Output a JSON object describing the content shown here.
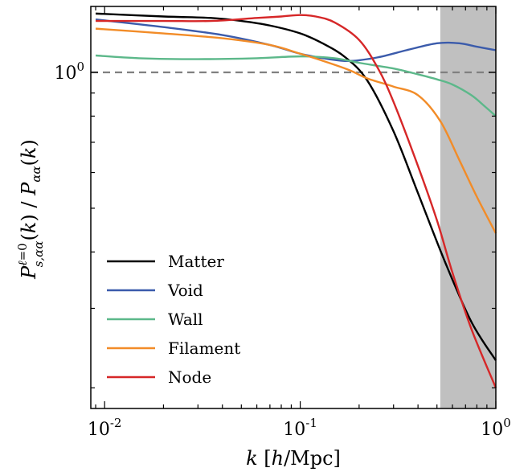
{
  "chart_data": {
    "type": "line",
    "xscale": "log",
    "yscale": "log",
    "xlim": [
      0.0085,
      1.0
    ],
    "ylim": [
      0.18,
      1.4
    ],
    "xlabel": "k [h/Mpc]",
    "ylabel": "P^{ℓ=0}_{s,αα}(k) / P_{αα}(k)",
    "x_ticks": [
      0.01,
      0.1,
      1.0
    ],
    "x_tick_labels": [
      {
        "base": "10",
        "exp": "-2"
      },
      {
        "base": "10",
        "exp": "-1"
      },
      {
        "base": "10",
        "exp": "0"
      }
    ],
    "y_ticks": [
      1.0
    ],
    "y_tick_labels": [
      {
        "base": "10",
        "exp": "0"
      }
    ],
    "reference_line": {
      "y": 1.0,
      "style": "dashed",
      "color": "#808080"
    },
    "shaded_region": {
      "x": [
        0.52,
        1.0
      ],
      "color": "#c0c0c0"
    },
    "legend_position": "lower-left",
    "series": [
      {
        "name": "Matter",
        "color": "#000000",
        "x": [
          0.009,
          0.02,
          0.035,
          0.05,
          0.07,
          0.1,
          0.13,
          0.17,
          0.22,
          0.3,
          0.4,
          0.55,
          0.75,
          1.0
        ],
        "y": [
          1.35,
          1.33,
          1.32,
          1.3,
          1.27,
          1.22,
          1.16,
          1.08,
          0.96,
          0.74,
          0.54,
          0.38,
          0.28,
          0.23
        ]
      },
      {
        "name": "Void",
        "color": "#3b5bab",
        "x": [
          0.009,
          0.02,
          0.04,
          0.07,
          0.1,
          0.14,
          0.18,
          0.25,
          0.35,
          0.5,
          0.65,
          0.8,
          1.0
        ],
        "y": [
          1.31,
          1.26,
          1.21,
          1.15,
          1.1,
          1.07,
          1.06,
          1.08,
          1.12,
          1.16,
          1.16,
          1.14,
          1.12
        ]
      },
      {
        "name": "Wall",
        "color": "#5cb88a",
        "x": [
          0.009,
          0.015,
          0.03,
          0.06,
          0.1,
          0.15,
          0.2,
          0.3,
          0.4,
          0.5,
          0.6,
          0.75,
          0.88,
          1.0
        ],
        "y": [
          1.09,
          1.075,
          1.07,
          1.075,
          1.085,
          1.075,
          1.05,
          1.02,
          0.99,
          0.965,
          0.94,
          0.89,
          0.84,
          0.8
        ]
      },
      {
        "name": "Filament",
        "color": "#f28c28",
        "x": [
          0.009,
          0.02,
          0.04,
          0.07,
          0.1,
          0.14,
          0.18,
          0.22,
          0.3,
          0.4,
          0.52,
          0.65,
          0.8,
          1.0
        ],
        "y": [
          1.25,
          1.22,
          1.19,
          1.15,
          1.1,
          1.05,
          1.01,
          0.97,
          0.93,
          0.89,
          0.78,
          0.64,
          0.53,
          0.44
        ]
      },
      {
        "name": "Node",
        "color": "#d62728",
        "x": [
          0.009,
          0.02,
          0.035,
          0.06,
          0.08,
          0.1,
          0.12,
          0.15,
          0.2,
          0.25,
          0.3,
          0.4,
          0.5,
          0.6,
          0.75,
          1.0
        ],
        "y": [
          1.3,
          1.3,
          1.3,
          1.32,
          1.33,
          1.34,
          1.33,
          1.29,
          1.18,
          1.02,
          0.86,
          0.62,
          0.47,
          0.36,
          0.27,
          0.2
        ]
      }
    ]
  }
}
